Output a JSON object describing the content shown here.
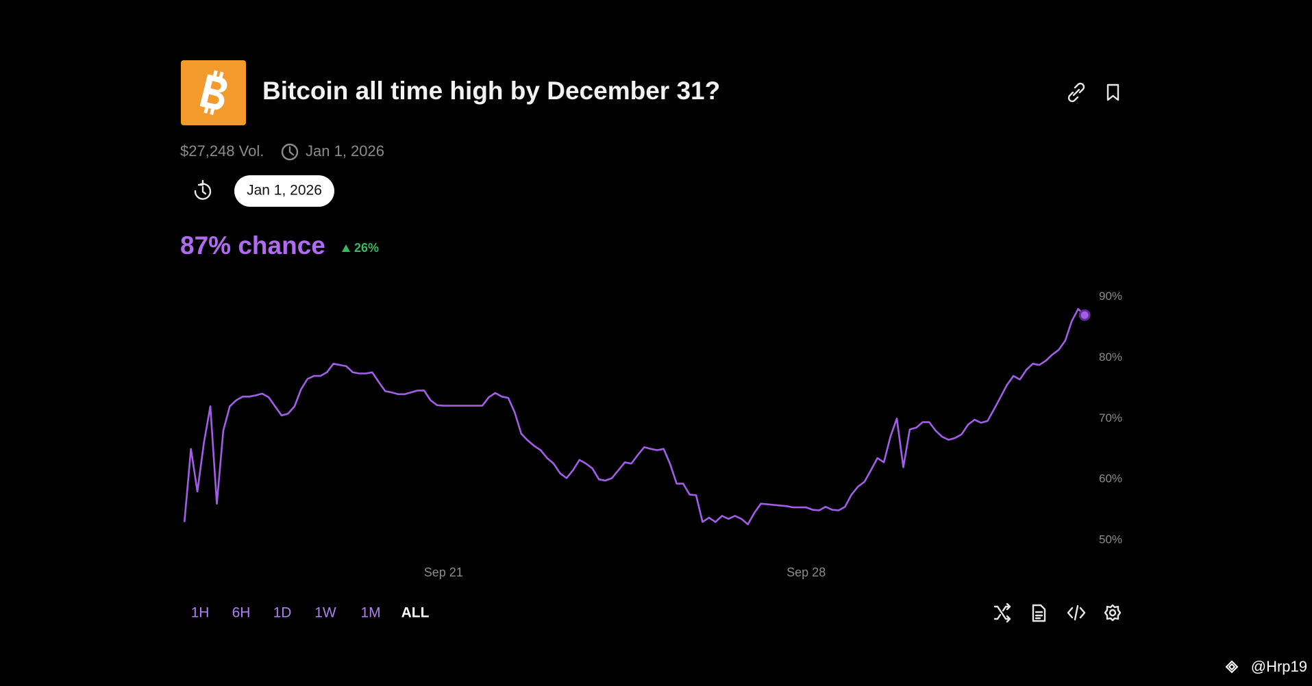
{
  "header": {
    "title": "Bitcoin all time high by December 31?",
    "volume": "$27,248 Vol.",
    "end_date": "Jan 1, 2026",
    "date_pill": "Jan 1, 2026",
    "chance": "87% chance",
    "change": "26%"
  },
  "ranges": [
    "1H",
    "6H",
    "1D",
    "1W",
    "1M",
    "ALL"
  ],
  "watermark": "@Hrp19",
  "chart_data": {
    "type": "line",
    "color": "#a35ee8",
    "categories": [
      null,
      null,
      null,
      null,
      null,
      null,
      null,
      null,
      null,
      null,
      null,
      null,
      null,
      null,
      null,
      null,
      null,
      null,
      null,
      null,
      null,
      null,
      null,
      null,
      null,
      null,
      null,
      null,
      null,
      null,
      null,
      null,
      null,
      null,
      null,
      null,
      null,
      null,
      null,
      null,
      "Sep 21",
      null,
      null,
      null,
      null,
      null,
      null,
      null,
      null,
      null,
      null,
      null,
      null,
      null,
      null,
      null,
      null,
      null,
      null,
      null,
      null,
      null,
      null,
      null,
      null,
      null,
      null,
      null,
      null,
      null,
      null,
      null,
      null,
      null,
      null,
      null,
      null,
      null,
      null,
      null,
      null,
      null,
      null,
      null,
      null,
      null,
      null,
      null,
      null,
      null,
      null,
      null,
      null,
      null,
      null,
      null,
      "Sep 28",
      null,
      null,
      null,
      null,
      null,
      null,
      null,
      null,
      null,
      null,
      null,
      null,
      null,
      null,
      null,
      null,
      null,
      null,
      null,
      null,
      null,
      null,
      null,
      null,
      null,
      null,
      null,
      null,
      null,
      null,
      null,
      null,
      null,
      null,
      null,
      null,
      null,
      null,
      null,
      null,
      null,
      null,
      null
    ],
    "values": [
      53,
      65,
      58,
      66,
      72,
      56,
      68,
      72,
      73,
      73.6,
      73.6,
      73.8,
      74.1,
      73.5,
      72,
      70.5,
      70.8,
      72,
      74.8,
      76.5,
      77,
      77,
      77.6,
      79,
      78.8,
      78.6,
      77.6,
      77.4,
      77.4,
      77.6,
      76,
      74.5,
      74.3,
      74,
      74,
      74.3,
      74.6,
      74.6,
      73,
      72.2,
      72.1,
      72.1,
      72.1,
      72.1,
      72.1,
      72.1,
      72.1,
      73.5,
      74.2,
      73.6,
      73.4,
      71,
      67.5,
      66.4,
      65.5,
      64.8,
      63.5,
      62.6,
      61,
      60.2,
      61.5,
      63.2,
      62.6,
      61.8,
      60,
      59.8,
      60.2,
      61.5,
      62.8,
      62.6,
      64,
      65.3,
      65,
      64.8,
      65,
      62.5,
      59.3,
      59.3,
      57.5,
      57.4,
      53,
      53.7,
      53,
      54,
      53.5,
      54,
      53.5,
      52.6,
      54.5,
      56,
      55.9,
      55.8,
      55.7,
      55.6,
      55.4,
      55.4,
      55.4,
      55,
      54.9,
      55.5,
      55,
      54.9,
      55.5,
      57.5,
      58.8,
      59.6,
      61.5,
      63.5,
      62.8,
      67,
      70,
      62,
      68.2,
      68.5,
      69.4,
      69.4,
      68,
      67,
      66.5,
      66.8,
      67.4,
      69,
      69.8,
      69.3,
      69.6,
      71.5,
      73.5,
      75.5,
      77,
      76.4,
      78,
      79,
      78.8,
      79.5,
      80.5,
      81.3,
      82.8,
      86,
      88,
      87
    ],
    "ylim": [
      47,
      92
    ],
    "yticks": [
      {
        "value": 50,
        "label": "50%"
      },
      {
        "value": 60,
        "label": "60%"
      },
      {
        "value": 70,
        "label": "70%"
      },
      {
        "value": 80,
        "label": "80%"
      },
      {
        "value": 90,
        "label": "90%"
      }
    ]
  }
}
